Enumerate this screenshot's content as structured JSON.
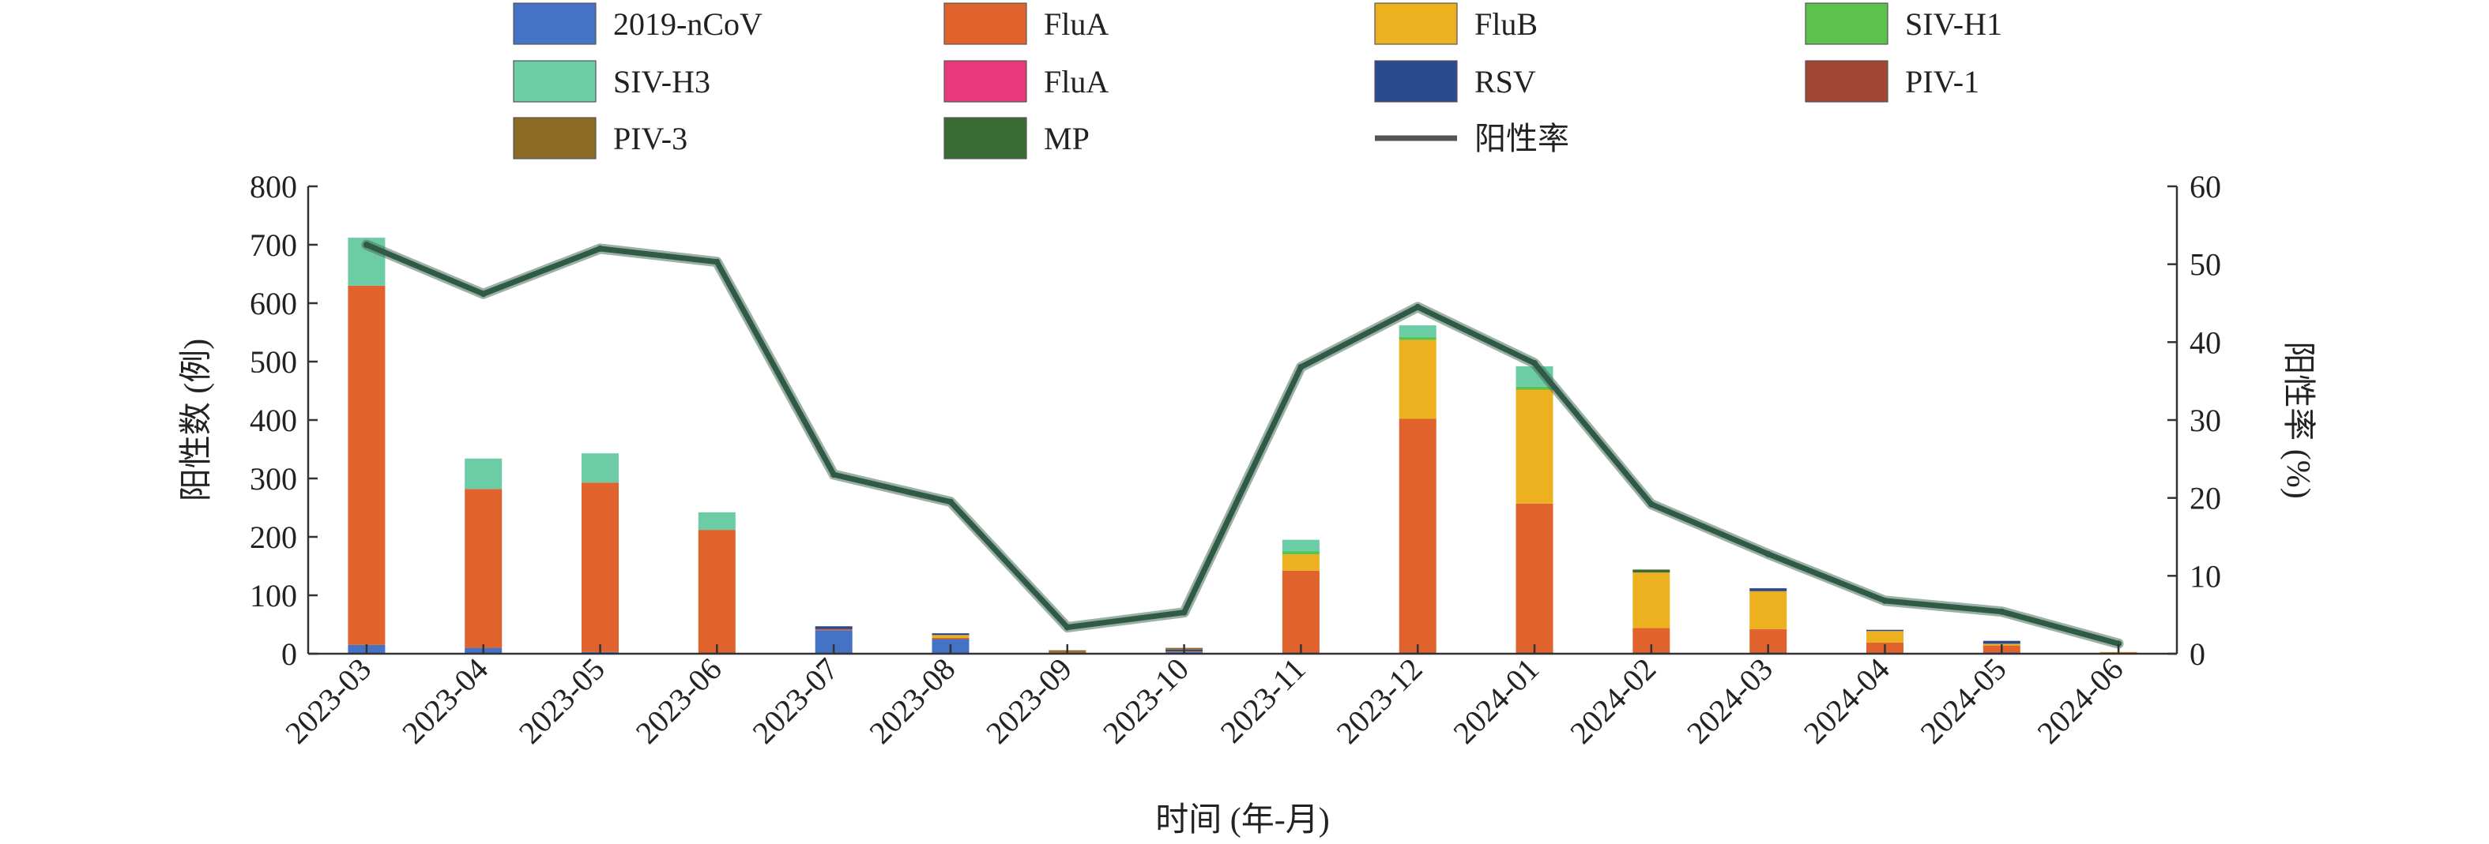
{
  "chart_data": {
    "type": "bar",
    "stacked": true,
    "title": "",
    "xlabel": "时间 (年-月)",
    "ylabel": "阳性数 (例)",
    "y2label": "阳性率 (%)",
    "ylim": [
      0,
      800
    ],
    "y2lim": [
      0,
      60
    ],
    "yticks": [
      0,
      100,
      200,
      300,
      400,
      500,
      600,
      700,
      800
    ],
    "y2ticks": [
      0,
      10,
      20,
      30,
      40,
      50,
      60
    ],
    "legend_position": "top",
    "categories": [
      "2023-03",
      "2023-04",
      "2023-05",
      "2023-06",
      "2023-07",
      "2023-08",
      "2023-09",
      "2023-10",
      "2023-11",
      "2023-12",
      "2024-01",
      "2024-02",
      "2024-03",
      "2024-04",
      "2024-05",
      "2024-06"
    ],
    "series": [
      {
        "name": "2019-nCoV",
        "color": "#4472c4",
        "values": [
          15,
          10,
          3,
          2,
          40,
          25,
          2,
          3,
          2,
          2,
          2,
          2,
          2,
          1,
          2,
          1
        ]
      },
      {
        "name": "FluA",
        "color": "#e0632e",
        "values": [
          615,
          272,
          290,
          210,
          2,
          2,
          1,
          1,
          140,
          400,
          255,
          42,
          40,
          18,
          12,
          1
        ]
      },
      {
        "name": "FluB",
        "color": "#edb120",
        "values": [
          0,
          0,
          0,
          0,
          0,
          5,
          0,
          0,
          28,
          135,
          195,
          95,
          65,
          20,
          3,
          1
        ]
      },
      {
        "name": "SIV-H1",
        "color": "#5bc24c",
        "values": [
          0,
          0,
          0,
          0,
          0,
          0,
          0,
          0,
          5,
          5,
          5,
          0,
          0,
          0,
          0,
          0
        ]
      },
      {
        "name": "SIV-H3",
        "color": "#6ccca5",
        "values": [
          82,
          52,
          50,
          30,
          0,
          0,
          0,
          0,
          20,
          20,
          35,
          0,
          0,
          0,
          0,
          0
        ]
      },
      {
        "name": "FluA",
        "color": "#e8397a",
        "values": [
          0,
          0,
          0,
          0,
          0,
          0,
          0,
          0,
          0,
          0,
          0,
          0,
          0,
          0,
          0,
          0
        ]
      },
      {
        "name": "RSV",
        "color": "#2a4a8f",
        "values": [
          0,
          0,
          0,
          0,
          5,
          3,
          0,
          3,
          0,
          0,
          0,
          0,
          5,
          2,
          5,
          0
        ]
      },
      {
        "name": "PIV-1",
        "color": "#a14534",
        "values": [
          0,
          0,
          0,
          0,
          0,
          0,
          0,
          0,
          0,
          0,
          0,
          0,
          0,
          0,
          0,
          0
        ]
      },
      {
        "name": "PIV-3",
        "color": "#8b6a23",
        "values": [
          0,
          0,
          0,
          0,
          0,
          0,
          3,
          3,
          0,
          0,
          0,
          0,
          0,
          0,
          0,
          0
        ]
      },
      {
        "name": "MP",
        "color": "#3a6b35",
        "values": [
          0,
          0,
          0,
          0,
          0,
          0,
          0,
          0,
          0,
          0,
          0,
          5,
          0,
          0,
          0,
          0
        ]
      }
    ],
    "line": {
      "name": "阳性率",
      "color": "#2f5a46",
      "legend_color": "#555555",
      "axis": "right",
      "values": [
        52.5,
        46.2,
        52.0,
        50.3,
        23.0,
        19.5,
        3.4,
        5.3,
        36.8,
        44.5,
        37.3,
        19.2,
        12.8,
        6.8,
        5.4,
        1.3
      ]
    }
  }
}
